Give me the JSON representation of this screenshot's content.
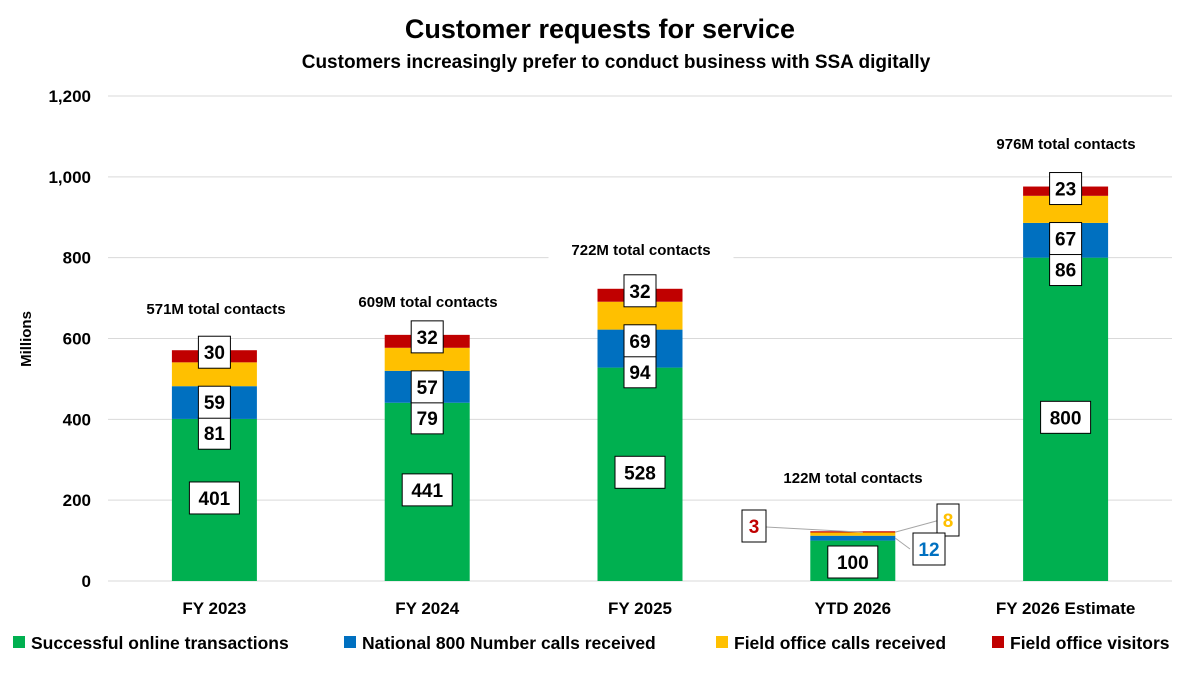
{
  "chart_data": {
    "type": "bar",
    "stacked": true,
    "title": "Customer requests for service",
    "subtitle": "Customers increasingly prefer to conduct business with SSA digitally",
    "xlabel": "",
    "ylabel": "Millions",
    "ylim": [
      0,
      1200
    ],
    "yticks": [
      0,
      200,
      400,
      600,
      800,
      1000,
      1200
    ],
    "ytick_labels": [
      "0",
      "200",
      "400",
      "600",
      "800",
      "1,000",
      "1,200"
    ],
    "grid": true,
    "legend_position": "bottom",
    "categories": [
      "FY 2023",
      "FY 2024",
      "FY 2025",
      "YTD 2026",
      "FY 2026 Estimate"
    ],
    "series": [
      {
        "name": "Successful online transactions",
        "color": "#00B050",
        "values": [
          401,
          441,
          528,
          100,
          800
        ]
      },
      {
        "name": "National 800 Number calls received",
        "color": "#0070C0",
        "values": [
          81,
          79,
          94,
          12,
          86
        ]
      },
      {
        "name": "Field office calls received",
        "color": "#FFC000",
        "values": [
          59,
          57,
          69,
          8,
          67
        ]
      },
      {
        "name": "Field office visitors",
        "color": "#C00000",
        "values": [
          30,
          32,
          32,
          3,
          23
        ]
      }
    ],
    "totals_labels": [
      "571M total contacts",
      "609M total contacts",
      "722M total contacts",
      "122M total contacts",
      "976M total contacts"
    ]
  }
}
